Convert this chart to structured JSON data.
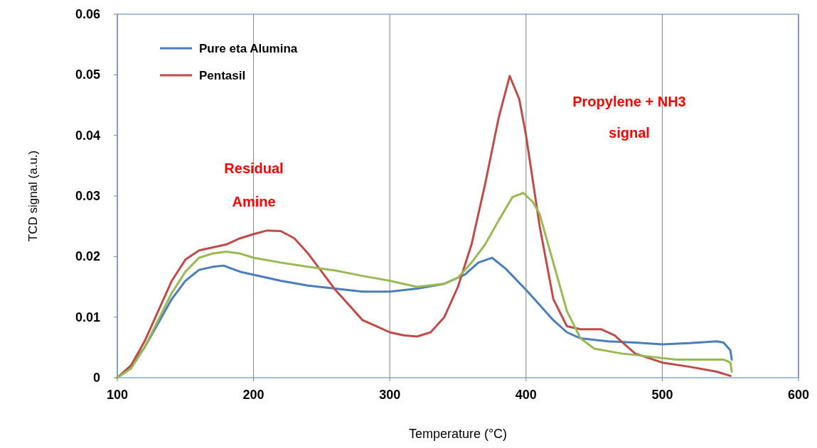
{
  "chart_data": {
    "type": "line",
    "xlabel": "Temperature (°C)",
    "ylabel": "TCD signal (a.u.)",
    "xlim": [
      100,
      600
    ],
    "xticks": [
      100,
      200,
      300,
      400,
      500,
      600
    ],
    "ylim": [
      0,
      0.06
    ],
    "yticks": [
      0,
      0.01,
      0.02,
      0.03,
      0.04,
      0.05,
      0.06
    ],
    "grid": "x",
    "legend": "top left",
    "line_style": "solid",
    "annotations": [
      "Residual",
      "Amine",
      "Propylene + NH3",
      "signal"
    ],
    "series": [
      {
        "name": "Pure eta Alumina",
        "color": "#4a7ebb",
        "x": [
          100,
          110,
          120,
          130,
          140,
          150,
          160,
          170,
          178,
          190,
          200,
          220,
          240,
          260,
          280,
          300,
          320,
          340,
          355,
          365,
          375,
          385,
          400,
          410,
          420,
          430,
          440,
          460,
          480,
          500,
          520,
          540,
          545,
          550,
          551
        ],
        "values": [
          0,
          0.002,
          0.005,
          0.009,
          0.013,
          0.016,
          0.0178,
          0.0183,
          0.0185,
          0.0175,
          0.017,
          0.016,
          0.0152,
          0.0147,
          0.0142,
          0.0142,
          0.0147,
          0.0155,
          0.017,
          0.019,
          0.0198,
          0.018,
          0.0145,
          0.012,
          0.0095,
          0.0075,
          0.0065,
          0.006,
          0.0058,
          0.0055,
          0.0057,
          0.006,
          0.0058,
          0.0045,
          0.003
        ]
      },
      {
        "name": "Pentasil",
        "color": "#be4b48",
        "x": [
          100,
          110,
          120,
          130,
          140,
          150,
          160,
          170,
          180,
          190,
          200,
          210,
          220,
          230,
          240,
          250,
          260,
          270,
          280,
          290,
          300,
          310,
          320,
          330,
          340,
          350,
          360,
          370,
          380,
          388,
          395,
          400,
          410,
          420,
          430,
          440,
          455,
          465,
          480,
          500,
          520,
          540,
          550
        ],
        "values": [
          0,
          0.002,
          0.006,
          0.011,
          0.016,
          0.0195,
          0.021,
          0.0215,
          0.022,
          0.023,
          0.0237,
          0.0243,
          0.0242,
          0.023,
          0.0205,
          0.0175,
          0.0145,
          0.012,
          0.0095,
          0.0085,
          0.0075,
          0.007,
          0.0068,
          0.0075,
          0.01,
          0.015,
          0.022,
          0.032,
          0.043,
          0.0498,
          0.046,
          0.04,
          0.025,
          0.013,
          0.0085,
          0.008,
          0.008,
          0.007,
          0.004,
          0.0025,
          0.0018,
          0.001,
          0.0003
        ]
      },
      {
        "color": "#98b954",
        "x": [
          100,
          110,
          120,
          130,
          140,
          150,
          160,
          170,
          180,
          190,
          200,
          220,
          240,
          260,
          280,
          300,
          320,
          340,
          350,
          360,
          370,
          380,
          390,
          398,
          405,
          410,
          420,
          430,
          440,
          450,
          470,
          490,
          510,
          530,
          545,
          550,
          551
        ],
        "values": [
          0,
          0.0015,
          0.005,
          0.0095,
          0.014,
          0.0175,
          0.0198,
          0.0205,
          0.0208,
          0.0205,
          0.0198,
          0.019,
          0.0183,
          0.0177,
          0.0168,
          0.016,
          0.015,
          0.0155,
          0.0165,
          0.019,
          0.022,
          0.026,
          0.0298,
          0.0305,
          0.029,
          0.027,
          0.019,
          0.011,
          0.0065,
          0.0048,
          0.004,
          0.0035,
          0.003,
          0.003,
          0.003,
          0.0025,
          0.001
        ]
      }
    ]
  }
}
